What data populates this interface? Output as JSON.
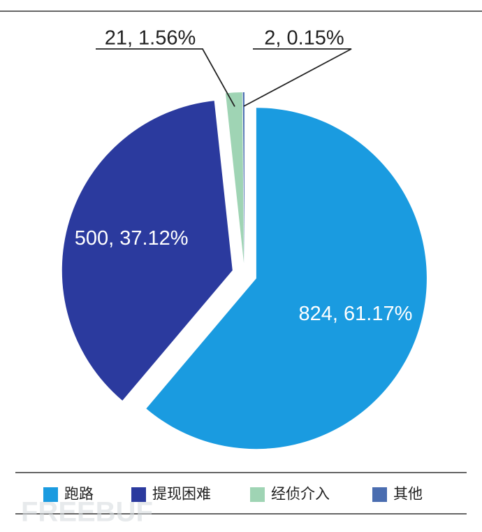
{
  "chart_data": {
    "type": "pie",
    "categories": [
      "跑路",
      "提现困难",
      "经侦介入",
      "其他"
    ],
    "values": [
      824,
      500,
      21,
      2
    ],
    "value_labels": [
      "824, 61.17%",
      "500, 37.12%",
      "21, 1.56%",
      "2, 0.15%"
    ],
    "colors": [
      "#1a9be0",
      "#2b3a9e",
      "#9fd4b4",
      "#4a6db0"
    ],
    "legend": "bottom",
    "watermark": "FREEBUF"
  }
}
